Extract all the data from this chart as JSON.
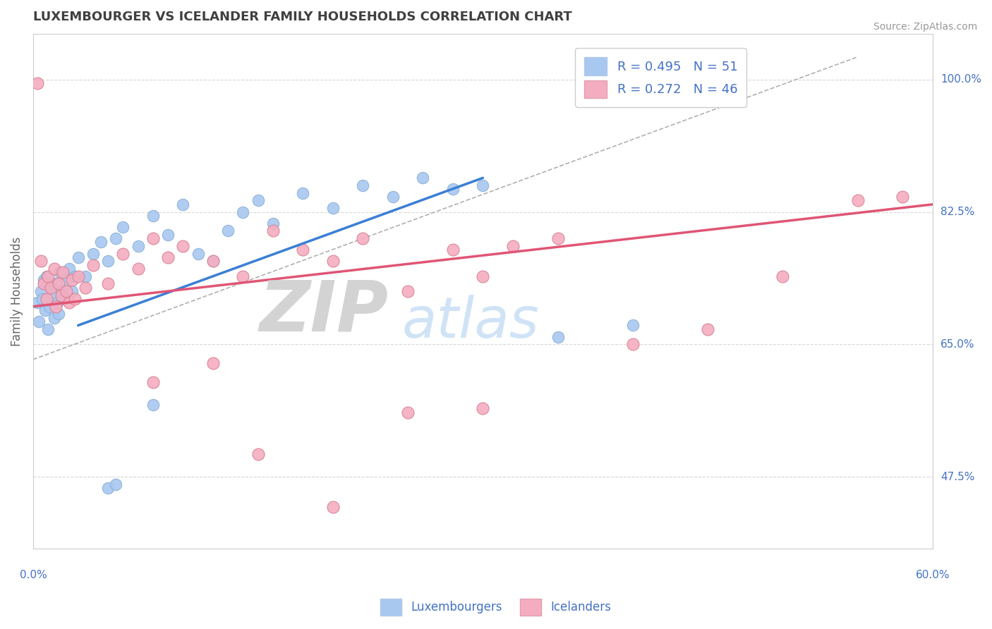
{
  "title": "LUXEMBOURGER VS ICELANDER FAMILY HOUSEHOLDS CORRELATION CHART",
  "source": "Source: ZipAtlas.com",
  "ylabel": "Family Households",
  "yticks": [
    47.5,
    65.0,
    82.5,
    100.0
  ],
  "ytick_labels": [
    "47.5%",
    "65.0%",
    "82.5%",
    "100.0%"
  ],
  "xlim": [
    0.0,
    60.0
  ],
  "ylim": [
    38.0,
    106.0
  ],
  "blue_R": 0.495,
  "blue_N": 51,
  "pink_R": 0.272,
  "pink_N": 46,
  "blue_color": "#a8c8f0",
  "pink_color": "#f4adc0",
  "blue_line_color": "#3a7fd5",
  "pink_line_color": "#e05575",
  "title_color": "#404040",
  "axis_label_color": "#4472c4",
  "legend_text_color": "#4472c4",
  "grid_color": "#d8d8d8",
  "border_color": "#cccccc",
  "blue_trend_x": [
    3.0,
    30.0
  ],
  "blue_trend_y": [
    67.5,
    87.0
  ],
  "pink_trend_x": [
    0.0,
    60.0
  ],
  "pink_trend_y": [
    70.0,
    83.5
  ],
  "dash_line_x": [
    0.0,
    55.0
  ],
  "dash_line_y": [
    63.0,
    103.0
  ],
  "blue_dots": [
    [
      0.3,
      70.5
    ],
    [
      0.4,
      68.0
    ],
    [
      0.5,
      72.0
    ],
    [
      0.6,
      71.0
    ],
    [
      0.7,
      73.5
    ],
    [
      0.8,
      69.5
    ],
    [
      0.9,
      74.0
    ],
    [
      1.0,
      67.0
    ],
    [
      1.1,
      70.0
    ],
    [
      1.2,
      72.5
    ],
    [
      1.3,
      71.5
    ],
    [
      1.4,
      68.5
    ],
    [
      1.5,
      73.0
    ],
    [
      1.6,
      70.5
    ],
    [
      1.7,
      69.0
    ],
    [
      1.8,
      74.5
    ],
    [
      1.9,
      72.0
    ],
    [
      2.0,
      71.0
    ],
    [
      2.2,
      73.5
    ],
    [
      2.4,
      75.0
    ],
    [
      2.6,
      72.0
    ],
    [
      2.8,
      74.0
    ],
    [
      3.0,
      76.5
    ],
    [
      3.5,
      74.0
    ],
    [
      4.0,
      77.0
    ],
    [
      4.5,
      78.5
    ],
    [
      5.0,
      76.0
    ],
    [
      5.5,
      79.0
    ],
    [
      6.0,
      80.5
    ],
    [
      7.0,
      78.0
    ],
    [
      8.0,
      82.0
    ],
    [
      9.0,
      79.5
    ],
    [
      10.0,
      83.5
    ],
    [
      11.0,
      77.0
    ],
    [
      12.0,
      76.0
    ],
    [
      13.0,
      80.0
    ],
    [
      14.0,
      82.5
    ],
    [
      15.0,
      84.0
    ],
    [
      16.0,
      81.0
    ],
    [
      18.0,
      85.0
    ],
    [
      20.0,
      83.0
    ],
    [
      22.0,
      86.0
    ],
    [
      24.0,
      84.5
    ],
    [
      26.0,
      87.0
    ],
    [
      28.0,
      85.5
    ],
    [
      30.0,
      86.0
    ],
    [
      35.0,
      66.0
    ],
    [
      40.0,
      67.5
    ],
    [
      5.0,
      46.0
    ],
    [
      5.5,
      46.5
    ],
    [
      8.0,
      57.0
    ]
  ],
  "pink_dots": [
    [
      0.3,
      99.5
    ],
    [
      0.5,
      76.0
    ],
    [
      0.7,
      73.0
    ],
    [
      0.9,
      71.0
    ],
    [
      1.0,
      74.0
    ],
    [
      1.2,
      72.5
    ],
    [
      1.4,
      75.0
    ],
    [
      1.5,
      70.0
    ],
    [
      1.7,
      73.0
    ],
    [
      1.9,
      71.5
    ],
    [
      2.0,
      74.5
    ],
    [
      2.2,
      72.0
    ],
    [
      2.4,
      70.5
    ],
    [
      2.6,
      73.5
    ],
    [
      2.8,
      71.0
    ],
    [
      3.0,
      74.0
    ],
    [
      3.5,
      72.5
    ],
    [
      4.0,
      75.5
    ],
    [
      5.0,
      73.0
    ],
    [
      6.0,
      77.0
    ],
    [
      7.0,
      75.0
    ],
    [
      8.0,
      79.0
    ],
    [
      9.0,
      76.5
    ],
    [
      10.0,
      78.0
    ],
    [
      12.0,
      76.0
    ],
    [
      14.0,
      74.0
    ],
    [
      16.0,
      80.0
    ],
    [
      18.0,
      77.5
    ],
    [
      20.0,
      76.0
    ],
    [
      22.0,
      79.0
    ],
    [
      25.0,
      72.0
    ],
    [
      28.0,
      77.5
    ],
    [
      30.0,
      74.0
    ],
    [
      32.0,
      78.0
    ],
    [
      35.0,
      79.0
    ],
    [
      40.0,
      65.0
    ],
    [
      45.0,
      67.0
    ],
    [
      50.0,
      74.0
    ],
    [
      55.0,
      84.0
    ],
    [
      58.0,
      84.5
    ],
    [
      15.0,
      50.5
    ],
    [
      20.0,
      43.5
    ],
    [
      25.0,
      56.0
    ],
    [
      30.0,
      56.5
    ],
    [
      8.0,
      60.0
    ],
    [
      12.0,
      62.5
    ]
  ]
}
